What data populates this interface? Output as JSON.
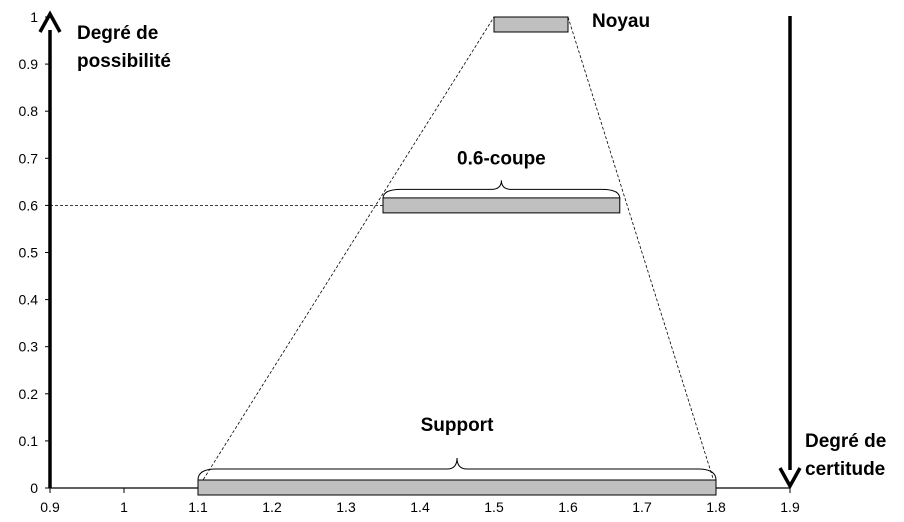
{
  "chart_data": {
    "type": "area",
    "xlim": [
      0.9,
      1.9
    ],
    "ylim": [
      0,
      1
    ],
    "x_ticks": [
      "0.9",
      "1",
      "1.1",
      "1.2",
      "1.3",
      "1.4",
      "1.5",
      "1.6",
      "1.7",
      "1.8",
      "1.9"
    ],
    "y_ticks": [
      "0",
      "0.1",
      "0.2",
      "0.3",
      "0.4",
      "0.5",
      "0.6",
      "0.7",
      "0.8",
      "0.9",
      "1"
    ],
    "grid": false,
    "series": [
      {
        "x": [
          1.1,
          1.5,
          1.6,
          1.8
        ],
        "y": [
          0,
          1,
          1,
          0
        ],
        "style": "dashed"
      }
    ],
    "cut_level": 0.6,
    "intervals": [
      {
        "label": "Noyau",
        "x_start": 1.5,
        "x_end": 1.6,
        "y": 1.0
      },
      {
        "label": "0.6-coupe",
        "x_start": 1.35,
        "x_end": 1.67,
        "y": 0.6
      },
      {
        "label": "Support",
        "x_start": 1.1,
        "x_end": 1.8,
        "y": 0.0
      }
    ],
    "axes_titles": {
      "possibility": [
        "Degré de",
        "possibilité"
      ],
      "certainty": [
        "Degré de",
        "certitude"
      ]
    },
    "colors": {
      "bar_fill": "#c0c0c0",
      "line": "#000000"
    }
  }
}
